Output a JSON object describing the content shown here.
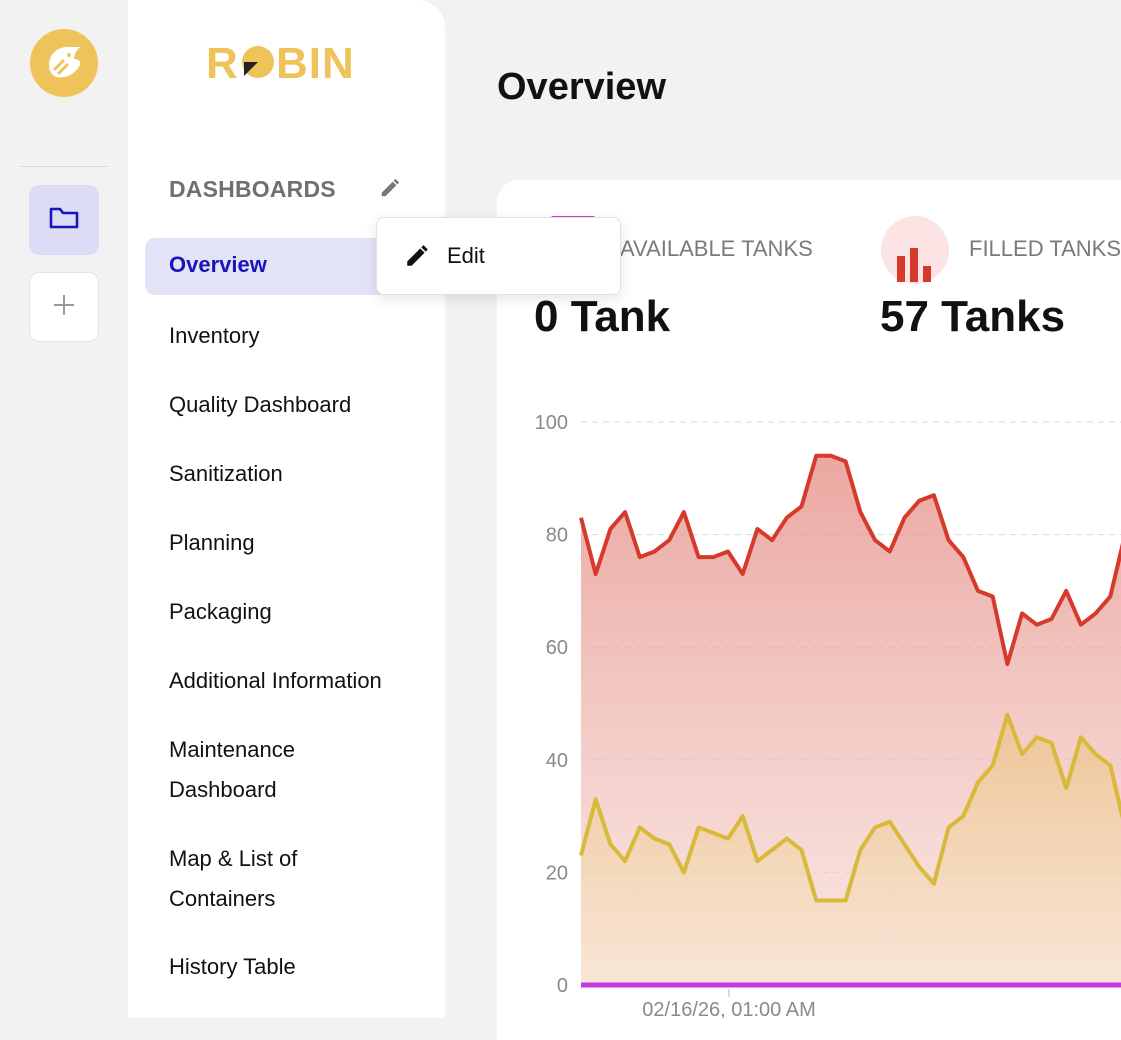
{
  "brand": {
    "name": "ROBIN",
    "color": "#eec35a"
  },
  "rail": {
    "icons": [
      "logo-icon",
      "folder-icon",
      "plus-icon"
    ]
  },
  "sidebar": {
    "section_title": "DASHBOARDS",
    "active_item": "Overview",
    "items": [
      {
        "label": "Overview"
      },
      {
        "label": "Inventory"
      },
      {
        "label": "Quality Dashboard"
      },
      {
        "label": "Sanitization"
      },
      {
        "label": "Planning"
      },
      {
        "label": "Packaging"
      },
      {
        "label": "Additional Information"
      },
      {
        "label": "Maintenance\nDashboard"
      },
      {
        "label": "Map & List of\nContainers"
      },
      {
        "label": "History Table"
      }
    ]
  },
  "popup_menu": {
    "items": [
      {
        "label": "Edit",
        "icon": "pencil-icon"
      }
    ]
  },
  "main": {
    "title": "Overview",
    "kpis": [
      {
        "label": "AVAILABLE TANKS",
        "value": "0 Tank"
      },
      {
        "label": "FILLED TANKS",
        "value": "57 Tanks",
        "icon": "bar-chart-icon"
      }
    ]
  },
  "colors": {
    "accent": "#1a15b8",
    "active_bg": "#e3e3f8",
    "red": "#d63a2c",
    "gold": "#d9b93a",
    "purple": "#c33ae0"
  },
  "chart_data": {
    "type": "area",
    "y_ticks": [
      "100",
      "80",
      "60",
      "40",
      "20",
      "0"
    ],
    "ylim": [
      0,
      100
    ],
    "x_tick_labels": [
      "02/16/26, 01:00 AM"
    ],
    "grid": "horizontal dashed",
    "series": [
      {
        "color": "#d63a2c",
        "values": [
          83,
          73,
          81,
          84,
          76,
          77,
          79,
          84,
          76,
          76,
          77,
          73,
          81,
          79,
          83,
          85,
          94,
          94,
          93,
          84,
          79,
          77,
          83,
          86,
          87,
          79,
          76,
          70,
          69,
          57,
          66,
          64,
          65,
          70,
          64,
          66,
          69,
          80
        ]
      },
      {
        "color": "#d9b93a",
        "values": [
          23,
          33,
          25,
          22,
          28,
          26,
          25,
          20,
          28,
          27,
          26,
          30,
          22,
          24,
          26,
          24,
          15,
          15,
          15,
          24,
          28,
          29,
          25,
          21,
          18,
          28,
          30,
          36,
          39,
          48,
          41,
          44,
          43,
          35,
          44,
          41,
          39,
          28
        ]
      },
      {
        "color": "#c33ae0",
        "values": [
          0,
          0,
          0,
          0,
          0,
          0,
          0,
          0,
          0,
          0,
          0,
          0,
          0,
          0,
          0,
          0,
          0,
          0,
          0,
          0,
          0,
          0,
          0,
          0,
          0,
          0,
          0,
          0,
          0,
          0,
          0,
          0,
          0,
          0,
          0,
          0,
          0,
          0
        ]
      }
    ]
  }
}
